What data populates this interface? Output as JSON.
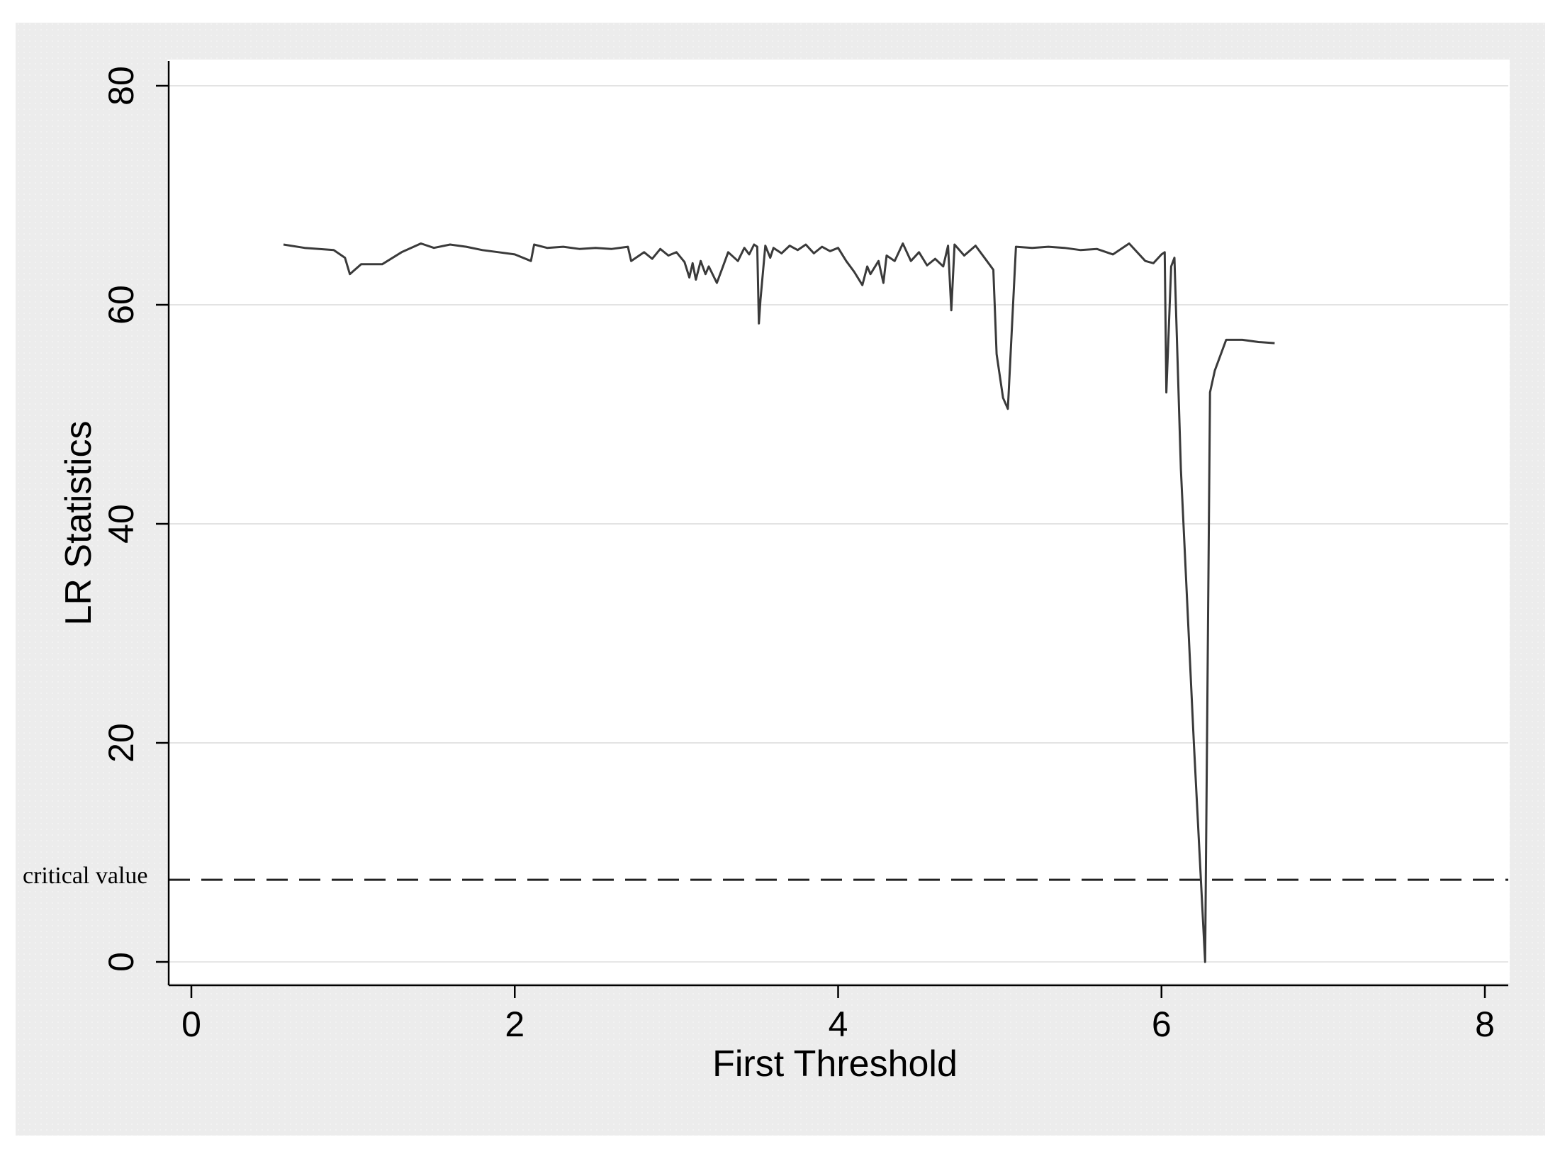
{
  "chart_data": {
    "type": "line",
    "title": "",
    "xlabel": "First Threshold",
    "ylabel": "LR Statistics",
    "xlim": [
      0,
      8
    ],
    "ylim": [
      0,
      80
    ],
    "x_ticks": [
      0,
      2,
      4,
      6,
      8
    ],
    "y_ticks": [
      0,
      20,
      40,
      60,
      80
    ],
    "grid": "horizontal",
    "legend": "none",
    "reference_line": {
      "label": "critical value",
      "value": 7.5,
      "style": "dashed"
    },
    "series": [
      {
        "x": [
          0.57,
          0.7,
          0.88,
          0.95,
          0.98,
          1.05,
          1.18,
          1.3,
          1.42,
          1.5,
          1.6,
          1.7,
          1.8,
          1.9,
          2.0,
          2.1,
          2.12,
          2.2,
          2.3,
          2.4,
          2.5,
          2.6,
          2.7,
          2.72,
          2.8,
          2.85,
          2.9,
          2.95,
          3.0,
          3.05,
          3.08,
          3.1,
          3.12,
          3.15,
          3.18,
          3.2,
          3.25,
          3.28,
          3.32,
          3.38,
          3.42,
          3.45,
          3.48,
          3.5,
          3.51,
          3.52,
          3.55,
          3.58,
          3.6,
          3.65,
          3.7,
          3.75,
          3.8,
          3.85,
          3.9,
          3.95,
          4.0,
          4.05,
          4.1,
          4.15,
          4.18,
          4.2,
          4.25,
          4.28,
          4.3,
          4.35,
          4.4,
          4.45,
          4.5,
          4.55,
          4.6,
          4.65,
          4.68,
          4.7,
          4.72,
          4.78,
          4.85,
          4.92,
          4.96,
          4.98,
          5.02,
          5.05,
          5.1,
          5.2,
          5.3,
          5.4,
          5.5,
          5.6,
          5.7,
          5.8,
          5.9,
          5.95,
          6.0,
          6.02,
          6.03,
          6.06,
          6.08,
          6.12,
          6.2,
          6.27,
          6.3,
          6.33,
          6.4,
          6.5,
          6.6,
          6.7
        ],
        "values": [
          65.5,
          65.2,
          65.0,
          64.3,
          62.8,
          63.7,
          63.7,
          64.8,
          65.6,
          65.2,
          65.5,
          65.3,
          65.0,
          64.8,
          64.6,
          64.0,
          65.5,
          65.2,
          65.3,
          65.1,
          65.2,
          65.1,
          65.3,
          64.0,
          64.8,
          64.2,
          65.1,
          64.5,
          64.8,
          63.9,
          62.5,
          63.8,
          62.3,
          64.0,
          62.8,
          63.5,
          62.0,
          63.2,
          64.8,
          64.0,
          65.2,
          64.6,
          65.5,
          65.3,
          58.3,
          60.5,
          65.4,
          64.3,
          65.2,
          64.7,
          65.4,
          65.0,
          65.5,
          64.7,
          65.3,
          64.9,
          65.2,
          64.0,
          63.0,
          61.8,
          63.5,
          62.8,
          64.0,
          62.0,
          64.5,
          64.0,
          65.6,
          64.0,
          64.8,
          63.6,
          64.2,
          63.5,
          65.4,
          59.5,
          65.5,
          64.5,
          65.4,
          64.0,
          63.2,
          55.5,
          51.5,
          50.5,
          65.3,
          65.2,
          65.3,
          65.2,
          65.0,
          65.1,
          64.6,
          65.6,
          64.0,
          63.8,
          64.6,
          64.8,
          52.0,
          63.5,
          64.3,
          45.0,
          20.0,
          0.0,
          52.0,
          54.0,
          56.8,
          56.8,
          56.6,
          56.5
        ]
      }
    ]
  }
}
